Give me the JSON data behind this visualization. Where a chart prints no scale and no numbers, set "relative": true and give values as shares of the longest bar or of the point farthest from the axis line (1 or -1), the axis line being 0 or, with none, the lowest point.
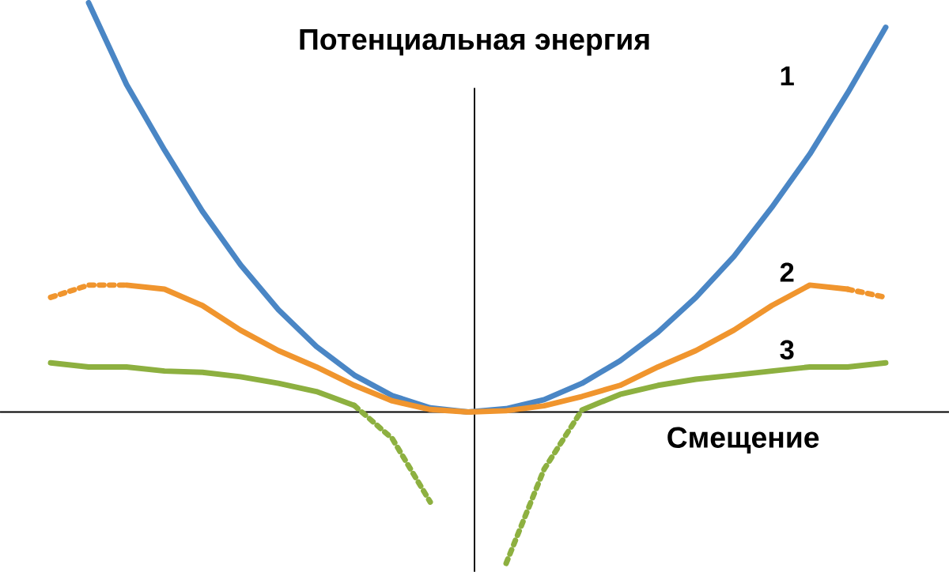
{
  "chart_data": {
    "type": "line",
    "title": "Потенциальная энергия",
    "xlabel": "Смещение",
    "relative": true,
    "categories": [
      null,
      null,
      null,
      null,
      null,
      null,
      null,
      null,
      null,
      null,
      null,
      null,
      null,
      null,
      null,
      null,
      null,
      null,
      null,
      null,
      null,
      null,
      null,
      null,
      null
    ],
    "series": [
      {
        "name": "1",
        "color": "#4a86c5",
        "line_style": "solid",
        "values": [
          null,
          null,
          1,
          0.8,
          0.64,
          0.49,
          0.36,
          0.25,
          0.16,
          0.09,
          0.04,
          0.01,
          0,
          0.008,
          0.03,
          0.07,
          0.125,
          0.195,
          0.28,
          0.38,
          0.5,
          0.63,
          0.78,
          0.94,
          null
        ]
      },
      {
        "name": "2",
        "color": "#f0952e",
        "line_style": "solid",
        "values": [
          null,
          null,
          null,
          0.31,
          0.3,
          0.26,
          0.2,
          0.15,
          0.11,
          0.065,
          0.027,
          0.006,
          0,
          0.003,
          0.015,
          0.038,
          0.065,
          0.11,
          0.15,
          0.2,
          0.26,
          0.31,
          0.3,
          null,
          null
        ]
      },
      {
        "color": "#f0952e",
        "line_style": "dotted",
        "values": [
          null,
          0.28,
          0.31,
          0.31,
          null,
          null,
          null,
          null,
          null,
          null,
          null,
          null,
          null,
          null,
          null,
          null,
          null,
          null,
          null,
          null,
          null,
          null,
          0.3,
          0.28,
          null
        ]
      },
      {
        "name": "3",
        "color": "#8db040",
        "line_style": "solid",
        "values": [
          null,
          0.12,
          0.11,
          0.11,
          0.1,
          0.097,
          0.086,
          0.07,
          0.05,
          0.016,
          null,
          null,
          null,
          null,
          null,
          0.005,
          0.043,
          0.065,
          0.08,
          0.09,
          0.1,
          0.11,
          0.11,
          0.12,
          null
        ]
      },
      {
        "color": "#8db040",
        "line_style": "dotted",
        "values": [
          null,
          null,
          null,
          null,
          null,
          null,
          null,
          null,
          null,
          0.016,
          -0.065,
          -0.22,
          null,
          -0.37,
          -0.14,
          0.005,
          null,
          null,
          null,
          null,
          null,
          null,
          null,
          null,
          null
        ]
      }
    ]
  }
}
